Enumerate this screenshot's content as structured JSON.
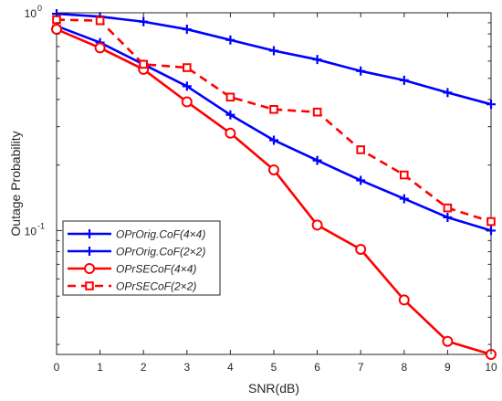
{
  "chart_data": {
    "type": "line",
    "xlabel": "SNR(dB)",
    "ylabel": "Outage Probability",
    "x_ticks": [
      "0",
      "1",
      "2",
      "3",
      "4",
      "5",
      "6",
      "7",
      "8",
      "9",
      "10"
    ],
    "y_ticks": [
      {
        "value": 1,
        "label": "10",
        "exp": "0"
      },
      {
        "value": 0.1,
        "label": "10",
        "exp": "-1"
      }
    ],
    "xlim": [
      0,
      10
    ],
    "ylim": [
      0.027,
      1
    ],
    "yscale": "log",
    "grid": false,
    "legend_position": "lower-left",
    "x": [
      0,
      1,
      2,
      3,
      4,
      5,
      6,
      7,
      8,
      9,
      10
    ],
    "series": [
      {
        "name": "OPrOrig.CoF(4×4)",
        "color": "#0000ff",
        "line": "solid",
        "marker": "plus",
        "values": [
          0.99,
          0.96,
          0.91,
          0.84,
          0.75,
          0.67,
          0.61,
          0.54,
          0.49,
          0.43,
          0.38
        ]
      },
      {
        "name": "OPrOrig.CoF(2×2)",
        "color": "#0000ff",
        "line": "solid",
        "marker": "plus",
        "values": [
          0.87,
          0.73,
          0.58,
          0.46,
          0.34,
          0.26,
          0.21,
          0.17,
          0.14,
          0.115,
          0.1
        ]
      },
      {
        "name": "OPrSECoF(4×4)",
        "color": "#ff0000",
        "line": "solid",
        "marker": "circle",
        "values": [
          0.84,
          0.69,
          0.55,
          0.39,
          0.28,
          0.19,
          0.106,
          0.082,
          0.048,
          0.031,
          0.027
        ]
      },
      {
        "name": "OPrSECoF(2×2)",
        "color": "#ff0000",
        "line": "dashed",
        "marker": "square",
        "values": [
          0.93,
          0.92,
          0.58,
          0.56,
          0.41,
          0.36,
          0.35,
          0.235,
          0.18,
          0.127,
          0.11
        ]
      }
    ]
  }
}
